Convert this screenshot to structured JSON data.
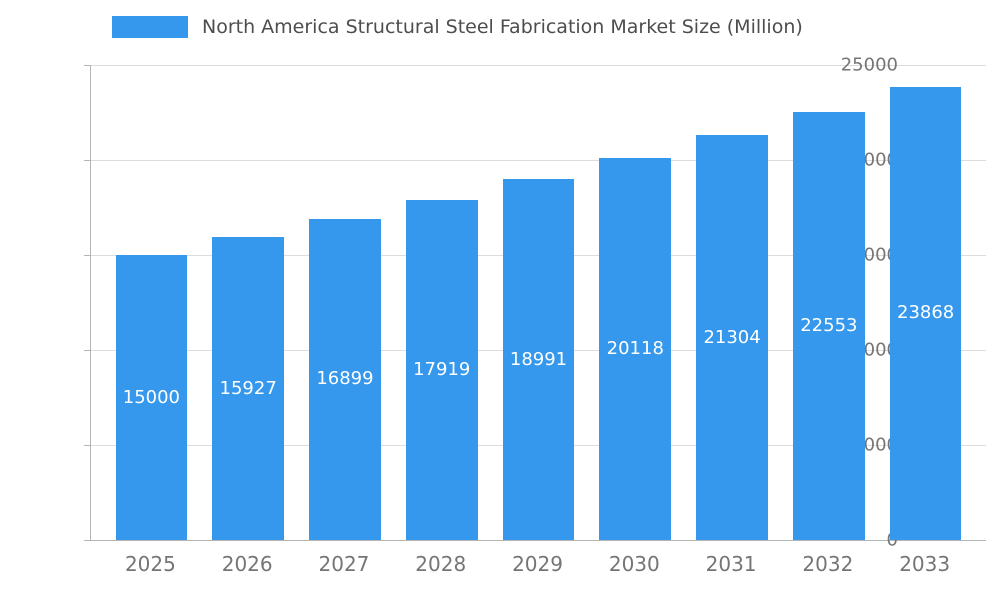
{
  "chart_data": {
    "type": "bar",
    "title": "North America Structural Steel Fabrication Market Size (Million)",
    "categories": [
      "2025",
      "2026",
      "2027",
      "2028",
      "2029",
      "2030",
      "2031",
      "2032",
      "2033"
    ],
    "values": [
      15000,
      15927,
      16899,
      17919,
      18991,
      20118,
      21304,
      22553,
      23868
    ],
    "xlabel": "",
    "ylabel": "",
    "ylim": [
      0,
      25000
    ],
    "yticks": [
      0,
      5000,
      10000,
      15000,
      20000,
      25000
    ],
    "grid": true,
    "legend_position": "top",
    "bar_color": "#3598EC",
    "value_label_color": "#ffffff",
    "axis_label_color": "#757575"
  }
}
